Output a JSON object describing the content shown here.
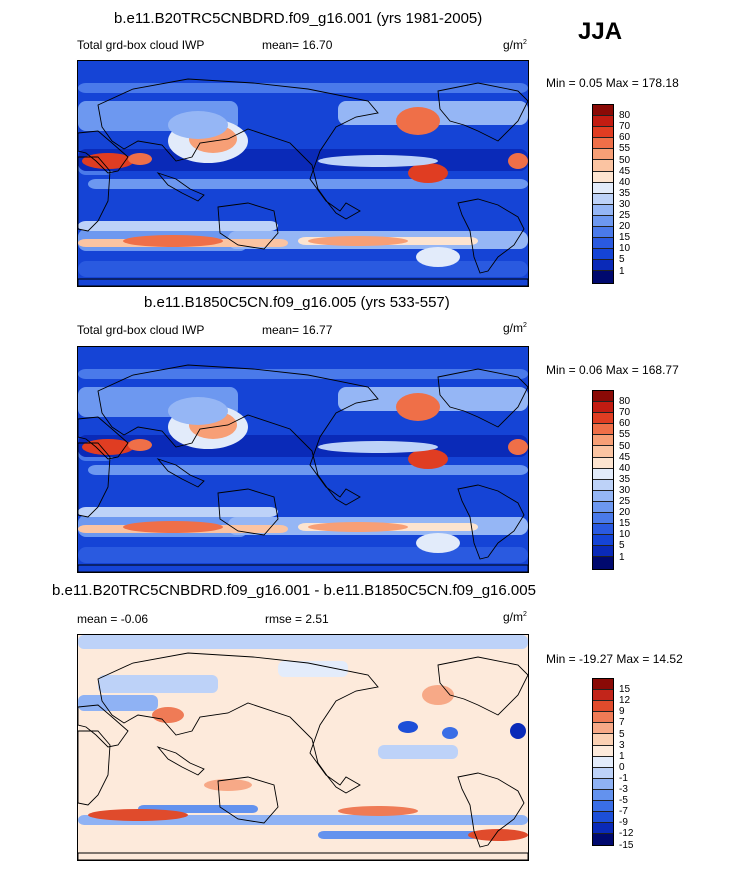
{
  "season": "JJA",
  "units_base": "g/m",
  "units_exp": "2",
  "panels": [
    {
      "title": "b.e11.B20TRC5CNBDRD.f09_g16.001 (yrs 1981-2005)",
      "subtitle": "Total grd-box cloud IWP",
      "stat": "mean=  16.70",
      "minmax": "Min =   0.05 Max = 178.18",
      "scheme": "abs"
    },
    {
      "title": "b.e11.B1850C5CN.f09_g16.005 (yrs 533-557)",
      "subtitle": "Total grd-box cloud IWP",
      "stat": "mean=  16.77",
      "minmax": "Min =   0.06 Max = 168.77",
      "scheme": "abs"
    },
    {
      "title": "b.e11.B20TRC5CNBDRD.f09_g16.001 - b.e11.B1850C5CN.f09_g16.005",
      "stat_left": "mean =  -0.06",
      "stat": "rmse =   2.51",
      "minmax": "Min = -19.27 Max =  14.52",
      "scheme": "diff"
    }
  ],
  "chart_data": [
    {
      "type": "heatmap",
      "title": "b.e11.B20TRC5CNBDRD.f09_g16.001 (yrs 1981-2005)",
      "variable": "Total grd-box cloud IWP",
      "units": "g/m2",
      "mean": 16.7,
      "min": 0.05,
      "max": 178.18,
      "levels": [
        1,
        5,
        10,
        15,
        20,
        25,
        30,
        35,
        40,
        45,
        50,
        55,
        60,
        70,
        80
      ],
      "colors": [
        "#00096e",
        "#0a2ab8",
        "#1544d6",
        "#2a5ae0",
        "#4a7aea",
        "#6d98f0",
        "#95b6f5",
        "#bdd2f8",
        "#e2ebfa",
        "#fde4d0",
        "#fbc4a2",
        "#f79f76",
        "#ef6f48",
        "#e03d22",
        "#c21c12",
        "#8a0a06"
      ]
    },
    {
      "type": "heatmap",
      "title": "b.e11.B1850C5CN.f09_g16.005 (yrs 533-557)",
      "variable": "Total grd-box cloud IWP",
      "units": "g/m2",
      "mean": 16.77,
      "min": 0.06,
      "max": 168.77,
      "levels": [
        1,
        5,
        10,
        15,
        20,
        25,
        30,
        35,
        40,
        45,
        50,
        55,
        60,
        70,
        80
      ],
      "colors": [
        "#00096e",
        "#0a2ab8",
        "#1544d6",
        "#2a5ae0",
        "#4a7aea",
        "#6d98f0",
        "#95b6f5",
        "#bdd2f8",
        "#e2ebfa",
        "#fde4d0",
        "#fbc4a2",
        "#f79f76",
        "#ef6f48",
        "#e03d22",
        "#c21c12",
        "#8a0a06"
      ]
    },
    {
      "type": "heatmap",
      "title": "b.e11.B20TRC5CNBDRD.f09_g16.001 - b.e11.B1850C5CN.f09_g16.005",
      "units": "g/m2",
      "mean": -0.06,
      "rmse": 2.51,
      "min": -19.27,
      "max": 14.52,
      "levels": [
        -15,
        -12,
        -9,
        -7,
        -5,
        -3,
        -1,
        0,
        1,
        3,
        5,
        7,
        9,
        12,
        15
      ],
      "colors": [
        "#00096e",
        "#0a2ab8",
        "#1d4fd8",
        "#3a6ee6",
        "#6392ee",
        "#8fb2f4",
        "#bdd2f8",
        "#e3ecfb",
        "#fdeadb",
        "#fbd0b3",
        "#f7a987",
        "#ef7b56",
        "#e04b2c",
        "#c2251a",
        "#8a0a06"
      ]
    }
  ]
}
